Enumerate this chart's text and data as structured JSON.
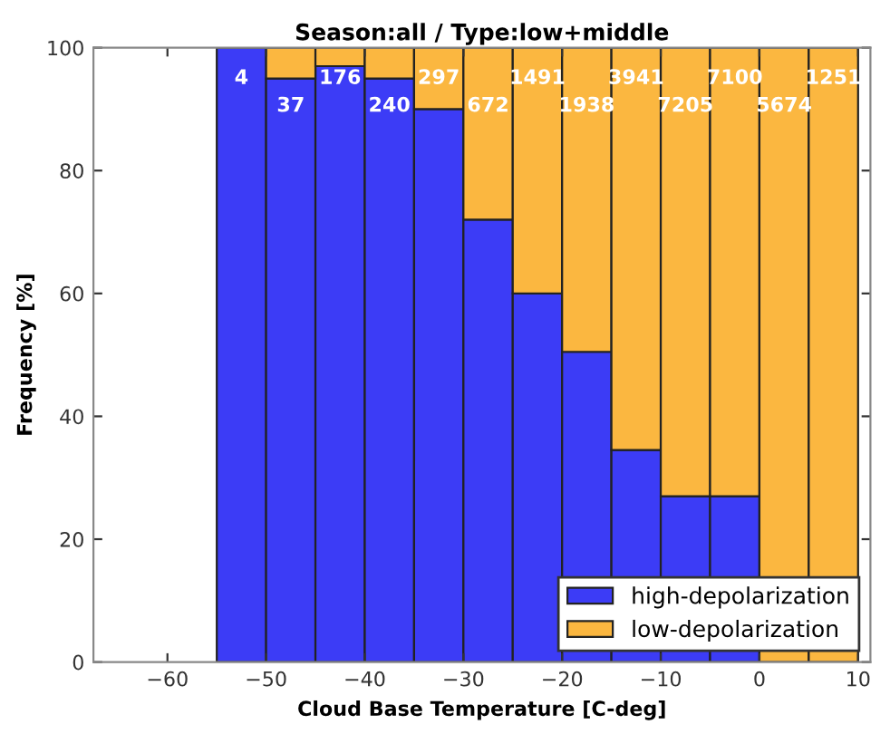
{
  "chart_data": {
    "type": "bar",
    "title": "Season:all / Type:low+middle",
    "xlabel": "Cloud Base Temperature [C-deg]",
    "ylabel": "Frequency [%]",
    "x": [
      -52.5,
      -47.5,
      -42.5,
      -37.5,
      -32.5,
      -27.5,
      -22.5,
      -17.5,
      -12.5,
      -7.5,
      -2.5,
      2.5,
      7.5
    ],
    "stacked": true,
    "series": [
      {
        "name": "high-depolarization",
        "color": "#3c3cf6",
        "values": [
          100,
          95,
          97,
          95,
          90,
          72,
          60,
          50.5,
          34.5,
          27,
          27,
          null,
          null
        ]
      },
      {
        "name": "low-depolarization",
        "color": "#fbb740",
        "values": [
          null,
          5,
          3,
          5,
          10,
          28,
          40,
          49.5,
          65.5,
          73,
          73,
          100,
          100
        ]
      }
    ],
    "xlim": [
      -67.5,
      11.25
    ],
    "ylim": [
      0,
      100
    ],
    "xticks": [
      -60,
      -50,
      -40,
      -30,
      -20,
      -10,
      0,
      10
    ],
    "yticks": [
      0,
      20,
      40,
      60,
      80,
      100
    ],
    "legend": "bottom right",
    "annotations": [
      "4",
      "37",
      "176",
      "240",
      "297",
      "672",
      "1491",
      "1938",
      "3941",
      "7205",
      "7100",
      "5674",
      "1251"
    ]
  }
}
